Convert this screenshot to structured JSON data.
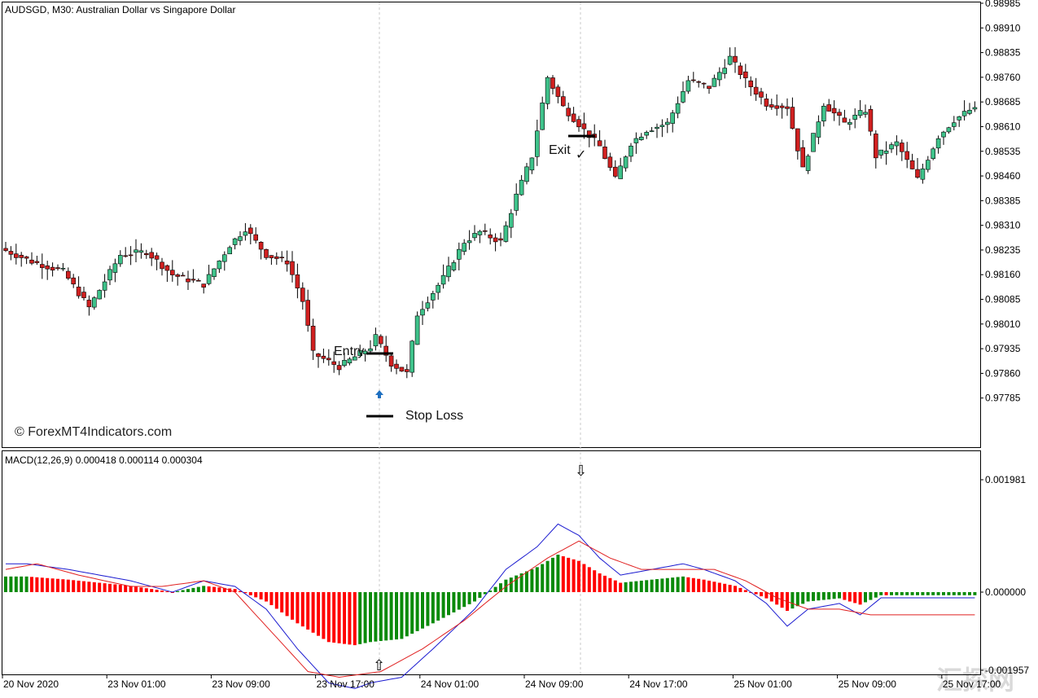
{
  "header": {
    "price_title": "AUDSGD, M30:  Australian Dollar vs Singapore Dollar",
    "macd_title": "MACD(12,26,9) 0.000418 0.000114 0.000304",
    "watermark": "© ForexMT4Indicators.com",
    "corner_stamp": "汇探网"
  },
  "annotations": {
    "entry": "Entry",
    "exit": "Exit",
    "stop_loss": "Stop Loss",
    "checkmark": "✓",
    "buy_arrow": "⇧",
    "sell_arrow": "⇩"
  },
  "colors": {
    "bull": "#3ec28a",
    "bear": "#d02020",
    "wick": "#000000",
    "macd_line": "#1a1ad0",
    "signal_line": "#e02020",
    "hist_up": "#0a8a0a",
    "hist_down": "#ff0000",
    "grid": "#c8c8c8",
    "entry_marker": "#1e6fc0"
  },
  "chart_data": [
    {
      "type": "candlestick",
      "title": "AUDSGD, M30:  Australian Dollar vs Singapore Dollar",
      "ylim": [
        0.9771,
        0.98985
      ],
      "yticks": [
        "0.98985",
        "0.98910",
        "0.98835",
        "0.98760",
        "0.98685",
        "0.98610",
        "0.98535",
        "0.98460",
        "0.98385",
        "0.98310",
        "0.98235",
        "0.98160",
        "0.98085",
        "0.98010",
        "0.97935",
        "0.97860",
        "0.97785"
      ],
      "xticks": [
        "20 Nov 2020",
        "23 Nov 01:00",
        "23 Nov 09:00",
        "23 Nov 17:00",
        "24 Nov 01:00",
        "24 Nov 09:00",
        "24 Nov 17:00",
        "25 Nov 01:00",
        "25 Nov 09:00",
        "25 Nov 17:00"
      ],
      "levels": {
        "entry": 0.9799,
        "stop_loss": 0.97795,
        "exit": 0.98605
      },
      "anchors": [
        [
          0,
          0.9824
        ],
        [
          6,
          0.982
        ],
        [
          12,
          0.9817
        ],
        [
          17,
          0.9806
        ],
        [
          23,
          0.9822
        ],
        [
          28,
          0.9823
        ],
        [
          33,
          0.9816
        ],
        [
          39,
          0.9813
        ],
        [
          44,
          0.9825
        ],
        [
          47,
          0.983
        ],
        [
          51,
          0.9822
        ],
        [
          55,
          0.982
        ],
        [
          58,
          0.9808
        ],
        [
          60,
          0.9792
        ],
        [
          65,
          0.9788
        ],
        [
          71,
          0.9794
        ],
        [
          72,
          0.9797
        ],
        [
          75,
          0.9789
        ],
        [
          78,
          0.9786
        ],
        [
          80,
          0.9804
        ],
        [
          85,
          0.9815
        ],
        [
          89,
          0.9826
        ],
        [
          92,
          0.9829
        ],
        [
          96,
          0.9826
        ],
        [
          99,
          0.984
        ],
        [
          102,
          0.9852
        ],
        [
          105,
          0.9876
        ],
        [
          108,
          0.9867
        ],
        [
          112,
          0.986
        ],
        [
          115,
          0.9855
        ],
        [
          118,
          0.9845
        ],
        [
          121,
          0.9856
        ],
        [
          124,
          0.986
        ],
        [
          128,
          0.9862
        ],
        [
          132,
          0.9875
        ],
        [
          136,
          0.9873
        ],
        [
          140,
          0.9882
        ],
        [
          143,
          0.9875
        ],
        [
          147,
          0.9868
        ],
        [
          151,
          0.9867
        ],
        [
          154,
          0.9848
        ],
        [
          158,
          0.9868
        ],
        [
          162,
          0.9862
        ],
        [
          166,
          0.9866
        ],
        [
          168,
          0.9852
        ],
        [
          172,
          0.9856
        ],
        [
          176,
          0.9845
        ],
        [
          180,
          0.9858
        ],
        [
          183,
          0.9863
        ],
        [
          186,
          0.9866
        ]
      ]
    },
    {
      "type": "line",
      "title": "MACD(12,26,9) 0.000418 0.000114 0.000304",
      "ylim": [
        -0.0019,
        0.001981
      ],
      "yticks": [
        "0.001981",
        "0.000000",
        "-0.001957"
      ],
      "series": [
        {
          "name": "MACD",
          "values": [
            [
              0,
              0.0005
            ],
            [
              4,
              0.0005
            ],
            [
              12,
              0.0004
            ],
            [
              24,
              0.0002
            ],
            [
              32,
              0.0
            ],
            [
              38,
              0.0002
            ],
            [
              44,
              0.0001
            ],
            [
              50,
              -0.0003
            ],
            [
              56,
              -0.001
            ],
            [
              62,
              -0.0016
            ],
            [
              67,
              -0.0017
            ],
            [
              70,
              -0.0016
            ],
            [
              76,
              -0.0015
            ],
            [
              82,
              -0.001
            ],
            [
              90,
              -0.0003
            ],
            [
              96,
              0.0004
            ],
            [
              102,
              0.0008
            ],
            [
              106,
              0.0012
            ],
            [
              110,
              0.001
            ],
            [
              114,
              0.0006
            ],
            [
              118,
              0.0003
            ],
            [
              124,
              0.0004
            ],
            [
              130,
              0.0005
            ],
            [
              134,
              0.0004
            ],
            [
              140,
              0.0002
            ],
            [
              146,
              -0.0002
            ],
            [
              150,
              -0.0006
            ],
            [
              154,
              -0.0003
            ],
            [
              160,
              -0.0002
            ],
            [
              164,
              -0.0004
            ],
            [
              168,
              -0.0001
            ]
          ]
        },
        {
          "name": "Signal",
          "values": [
            [
              0,
              0.0004
            ],
            [
              6,
              0.0005
            ],
            [
              14,
              0.0003
            ],
            [
              24,
              0.0001
            ],
            [
              30,
              0.0001
            ],
            [
              38,
              0.0002
            ],
            [
              44,
              0.0
            ],
            [
              52,
              -0.0008
            ],
            [
              58,
              -0.0014
            ],
            [
              64,
              -0.0015
            ],
            [
              72,
              -0.0014
            ],
            [
              80,
              -0.001
            ],
            [
              88,
              -0.0005
            ],
            [
              96,
              0.0001
            ],
            [
              104,
              0.0006
            ],
            [
              110,
              0.0009
            ],
            [
              116,
              0.0006
            ],
            [
              122,
              0.0004
            ],
            [
              130,
              0.0004
            ],
            [
              136,
              0.0004
            ],
            [
              142,
              0.0002
            ],
            [
              148,
              -0.0001
            ],
            [
              154,
              -0.0003
            ],
            [
              160,
              -0.0003
            ],
            [
              166,
              -0.0004
            ],
            [
              168,
              -0.0004
            ]
          ]
        }
      ]
    }
  ]
}
